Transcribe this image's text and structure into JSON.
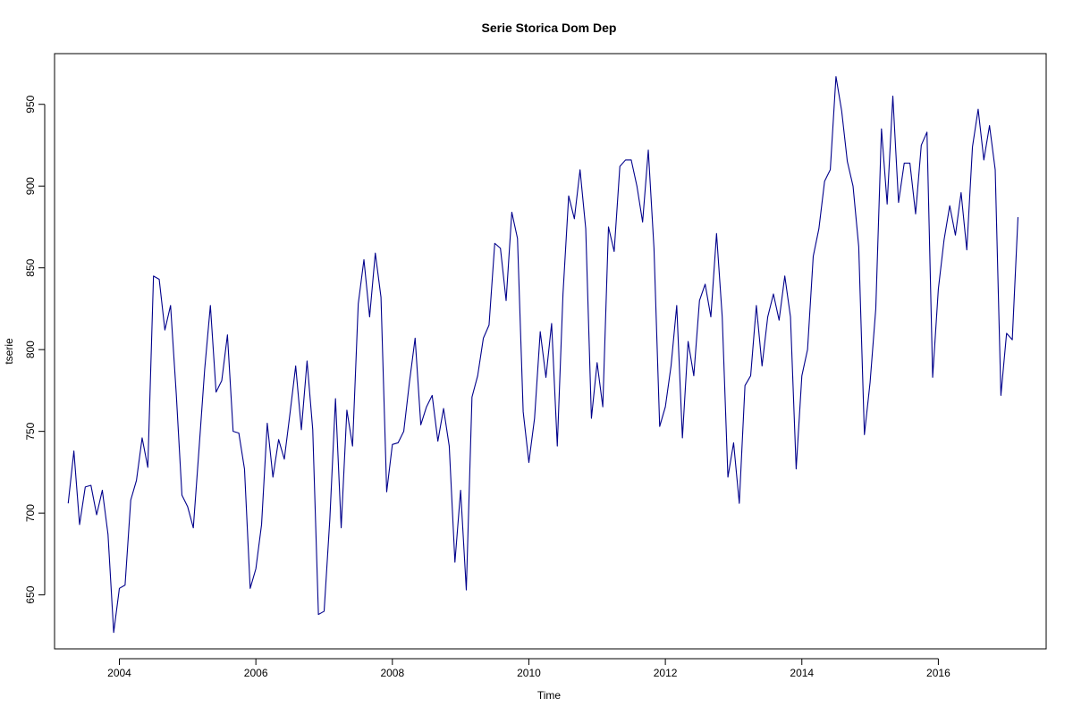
{
  "chart_data": {
    "type": "line",
    "title": "Serie Storica Dom Dep",
    "xlabel": "Time",
    "ylabel": "tserie",
    "xlim": [
      2003.05,
      2017.58
    ],
    "ylim": [
      617,
      981
    ],
    "x_ticks": [
      2004,
      2006,
      2008,
      2010,
      2012,
      2014,
      2016
    ],
    "x_tick_labels": [
      "2004",
      "2006",
      "2008",
      "2010",
      "2012",
      "2014",
      "2016"
    ],
    "y_ticks": [
      650,
      700,
      750,
      800,
      850,
      900,
      950
    ],
    "y_tick_labels": [
      "650",
      "700",
      "750",
      "800",
      "850",
      "900",
      "950"
    ],
    "grid": false,
    "legend": "none",
    "line_color": "#00008B",
    "series": [
      {
        "start": 2003.25,
        "frequency": 12,
        "values": [
          706,
          738,
          693,
          716,
          717,
          699,
          714,
          687,
          627,
          654,
          656,
          708,
          720,
          746,
          728,
          845,
          843,
          812,
          827,
          773,
          711,
          704,
          691,
          739,
          788,
          827,
          774,
          781,
          809,
          750,
          749,
          727,
          654,
          666,
          693,
          755,
          722,
          745,
          733,
          761,
          790,
          751,
          793,
          751,
          638,
          640,
          696,
          770,
          691,
          763,
          741,
          828,
          855,
          820,
          859,
          832,
          713,
          742,
          743,
          750,
          780,
          807,
          754,
          765,
          772,
          744,
          764,
          741,
          670,
          714,
          653,
          771,
          784,
          807,
          815,
          865,
          862,
          830,
          884,
          868,
          762,
          731,
          758,
          811,
          783,
          816,
          741,
          834,
          894,
          880,
          910,
          874,
          758,
          792,
          765,
          875,
          860,
          912,
          916,
          916,
          900,
          878,
          922,
          862,
          753,
          765,
          790,
          827,
          746,
          805,
          784,
          830,
          840,
          820,
          871,
          820,
          722,
          743,
          706,
          778,
          784,
          827,
          790,
          820,
          834,
          818,
          845,
          820,
          727,
          784,
          800,
          857,
          874,
          903,
          910,
          967,
          946,
          915,
          900,
          863,
          748,
          780,
          825,
          935,
          889,
          955,
          890,
          914,
          914,
          883,
          925,
          933,
          783,
          837,
          867,
          888,
          870,
          896,
          861,
          924,
          947,
          916,
          937,
          910,
          772,
          810,
          806,
          881
        ]
      }
    ]
  }
}
